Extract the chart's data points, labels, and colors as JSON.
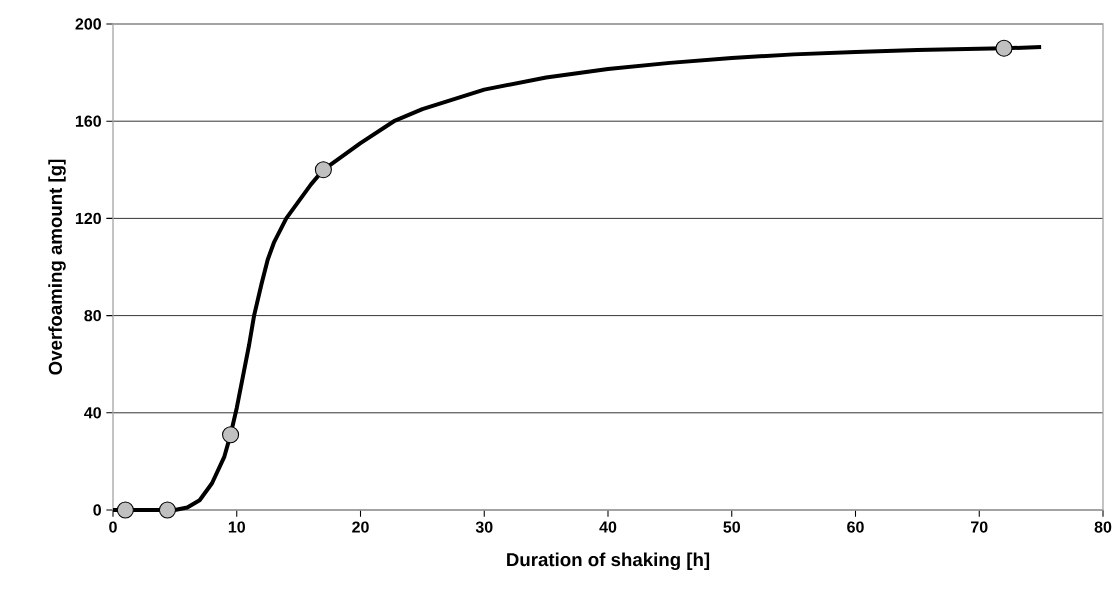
{
  "chart_data": {
    "type": "scatter",
    "xlabel": "Duration of shaking [h]",
    "ylabel": "Overfoaming amount [g]",
    "xlim": [
      0,
      80
    ],
    "xticks": [
      0,
      10,
      20,
      30,
      40,
      50,
      60,
      70,
      80
    ],
    "ylim": [
      0,
      200
    ],
    "yticks": [
      0,
      40,
      80,
      120,
      160,
      200
    ],
    "grid": "y",
    "series": [
      {
        "type": "line",
        "color": "#000000",
        "marker": "none",
        "line_style": "solid",
        "x": [
          0,
          5,
          6,
          7,
          8,
          9,
          9.5,
          10,
          10.5,
          11,
          11.4,
          12,
          12.5,
          13,
          14,
          15,
          16,
          17,
          20,
          22.7,
          25,
          30,
          35,
          40,
          45,
          50,
          55,
          60,
          65,
          72,
          75
        ],
        "values": [
          0,
          0,
          1,
          4,
          11,
          22,
          31,
          42,
          55,
          68,
          80,
          93,
          103,
          110,
          120,
          127,
          134,
          140,
          151,
          160,
          165,
          173,
          178,
          181.5,
          184,
          186,
          187.5,
          188.5,
          189.3,
          190,
          190.5
        ]
      },
      {
        "color": "#c0c0c0",
        "marker": "circle",
        "x": [
          1,
          4.4,
          9.5,
          17,
          72
        ],
        "values": [
          0,
          0,
          31,
          140,
          190
        ]
      }
    ]
  }
}
